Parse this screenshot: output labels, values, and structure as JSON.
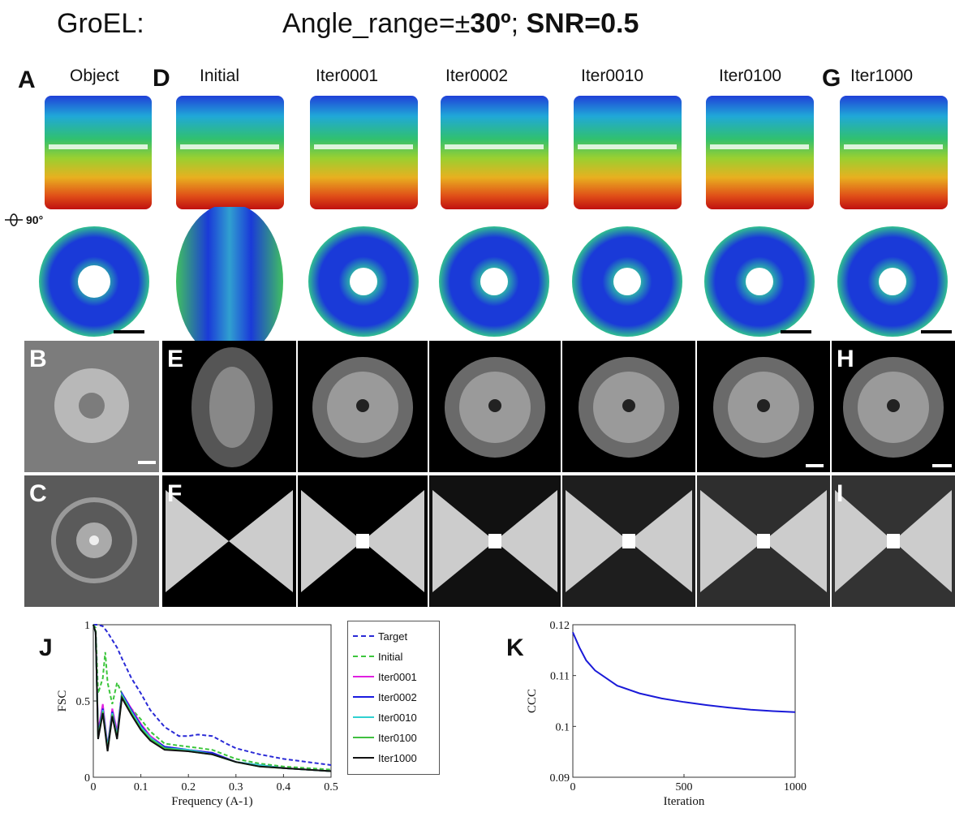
{
  "figure": {
    "title_left": "GroEL:",
    "title_right_prefix": "Angle_range=±",
    "title_right_angle": "30º",
    "title_right_sep": "; ",
    "title_right_snr": "SNR=0.5",
    "rotation_label": "90°"
  },
  "panel_labels": {
    "A": "A",
    "B": "B",
    "C": "C",
    "D": "D",
    "E": "E",
    "F": "F",
    "G": "G",
    "H": "H",
    "I": "I",
    "J": "J",
    "K": "K"
  },
  "columns": [
    "Object",
    "Initial",
    "Iter0001",
    "Iter0002",
    "Iter0010",
    "Iter0100",
    "Iter1000"
  ],
  "colors": {
    "fsc_target": "#2a2ad6",
    "fsc_initial": "#3cc63c",
    "fsc_iter0001": "#e020e0",
    "fsc_iter0002": "#1a1ae0",
    "fsc_iter0010": "#30d0d0",
    "fsc_iter0100": "#40c040",
    "fsc_iter1000": "#111111",
    "ccc_line": "#1a1ad8"
  },
  "chart_data": [
    {
      "type": "line",
      "panel": "J",
      "xlabel": "Frequency (A-1)",
      "ylabel": "FSC",
      "xlim": [
        0,
        0.5
      ],
      "ylim": [
        0,
        1
      ],
      "xticks": [
        "0",
        "0.1",
        "0.2",
        "0.3",
        "0.4",
        "0.5"
      ],
      "yticks": [
        "0",
        "0.5",
        "1"
      ],
      "legend_position": "right-outside",
      "series": [
        {
          "name": "Target",
          "style": "dashed",
          "x": [
            0.0,
            0.01,
            0.02,
            0.03,
            0.04,
            0.05,
            0.06,
            0.08,
            0.1,
            0.12,
            0.15,
            0.18,
            0.2,
            0.22,
            0.25,
            0.28,
            0.3,
            0.35,
            0.4,
            0.45,
            0.5
          ],
          "values": [
            1.0,
            1.0,
            0.99,
            0.95,
            0.9,
            0.85,
            0.78,
            0.65,
            0.55,
            0.44,
            0.33,
            0.27,
            0.27,
            0.28,
            0.27,
            0.22,
            0.19,
            0.15,
            0.12,
            0.1,
            0.08
          ]
        },
        {
          "name": "Initial",
          "style": "dashed",
          "x": [
            0.0,
            0.005,
            0.01,
            0.02,
            0.025,
            0.03,
            0.04,
            0.05,
            0.06,
            0.08,
            0.1,
            0.12,
            0.15,
            0.2,
            0.25,
            0.3,
            0.35,
            0.4,
            0.45,
            0.5
          ],
          "values": [
            1.0,
            0.98,
            0.55,
            0.65,
            0.82,
            0.62,
            0.48,
            0.62,
            0.55,
            0.45,
            0.38,
            0.3,
            0.22,
            0.2,
            0.18,
            0.12,
            0.09,
            0.07,
            0.06,
            0.05
          ]
        },
        {
          "name": "Iter0001",
          "style": "solid",
          "x": [
            0.0,
            0.005,
            0.01,
            0.02,
            0.03,
            0.04,
            0.05,
            0.06,
            0.08,
            0.1,
            0.12,
            0.15,
            0.2,
            0.25,
            0.3,
            0.35,
            0.4,
            0.45,
            0.5
          ],
          "values": [
            1.0,
            0.95,
            0.3,
            0.48,
            0.2,
            0.45,
            0.3,
            0.55,
            0.45,
            0.35,
            0.27,
            0.2,
            0.18,
            0.16,
            0.1,
            0.08,
            0.06,
            0.05,
            0.04
          ]
        },
        {
          "name": "Iter0002",
          "style": "solid",
          "x": [
            0.0,
            0.005,
            0.01,
            0.02,
            0.03,
            0.04,
            0.05,
            0.06,
            0.08,
            0.1,
            0.12,
            0.15,
            0.2,
            0.25,
            0.3,
            0.35,
            0.4,
            0.45,
            0.5
          ],
          "values": [
            1.0,
            0.95,
            0.28,
            0.45,
            0.2,
            0.43,
            0.28,
            0.55,
            0.44,
            0.34,
            0.26,
            0.2,
            0.18,
            0.16,
            0.1,
            0.08,
            0.06,
            0.05,
            0.04
          ]
        },
        {
          "name": "Iter0010",
          "style": "solid",
          "x": [
            0.0,
            0.005,
            0.01,
            0.02,
            0.03,
            0.04,
            0.05,
            0.06,
            0.08,
            0.1,
            0.12,
            0.15,
            0.2,
            0.25,
            0.3,
            0.35,
            0.4,
            0.45,
            0.5
          ],
          "values": [
            1.0,
            0.95,
            0.27,
            0.44,
            0.19,
            0.42,
            0.27,
            0.54,
            0.43,
            0.33,
            0.26,
            0.19,
            0.18,
            0.15,
            0.1,
            0.08,
            0.06,
            0.05,
            0.04
          ]
        },
        {
          "name": "Iter0100",
          "style": "solid",
          "x": [
            0.0,
            0.005,
            0.01,
            0.02,
            0.03,
            0.04,
            0.05,
            0.06,
            0.08,
            0.1,
            0.12,
            0.15,
            0.2,
            0.25,
            0.3,
            0.35,
            0.4,
            0.45,
            0.5
          ],
          "values": [
            1.0,
            0.95,
            0.26,
            0.43,
            0.18,
            0.41,
            0.26,
            0.53,
            0.42,
            0.32,
            0.25,
            0.19,
            0.17,
            0.15,
            0.1,
            0.07,
            0.06,
            0.05,
            0.04
          ]
        },
        {
          "name": "Iter1000",
          "style": "solid",
          "x": [
            0.0,
            0.005,
            0.01,
            0.02,
            0.03,
            0.04,
            0.05,
            0.06,
            0.08,
            0.1,
            0.12,
            0.15,
            0.2,
            0.25,
            0.3,
            0.35,
            0.4,
            0.45,
            0.5
          ],
          "values": [
            1.0,
            0.95,
            0.25,
            0.42,
            0.17,
            0.4,
            0.25,
            0.52,
            0.41,
            0.31,
            0.24,
            0.18,
            0.17,
            0.15,
            0.1,
            0.07,
            0.06,
            0.05,
            0.04
          ]
        }
      ]
    },
    {
      "type": "line",
      "panel": "K",
      "xlabel": "Iteration",
      "ylabel": "CCC",
      "xlim": [
        0,
        1000
      ],
      "ylim": [
        0.09,
        0.12
      ],
      "xticks": [
        "0",
        "500",
        "1000"
      ],
      "yticks": [
        "0.09",
        "0.1",
        "0.11",
        "0.12"
      ],
      "series": [
        {
          "x": [
            0,
            10,
            30,
            60,
            100,
            150,
            200,
            300,
            400,
            500,
            600,
            700,
            800,
            900,
            1000
          ],
          "values": [
            0.1185,
            0.1175,
            0.1155,
            0.113,
            0.111,
            0.1095,
            0.108,
            0.1065,
            0.1055,
            0.1048,
            0.1042,
            0.1037,
            0.1033,
            0.103,
            0.1028
          ]
        }
      ]
    }
  ]
}
